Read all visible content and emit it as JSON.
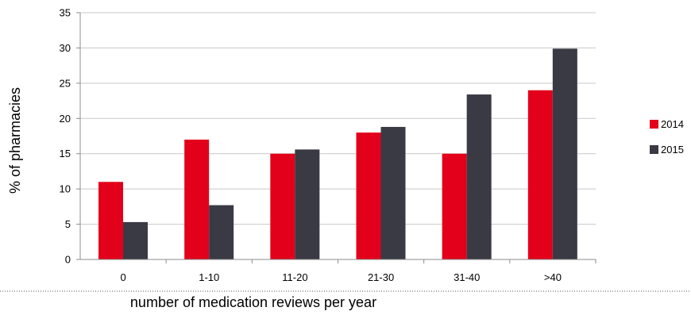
{
  "chart_data": {
    "type": "bar",
    "title": "",
    "xlabel": "number of medication reviews per year",
    "ylabel": "% of pharmacies",
    "categories": [
      "0",
      "1-10",
      "11-20",
      "21-30",
      "31-40",
      ">40"
    ],
    "series": [
      {
        "name": "2014",
        "color": "#e2001a",
        "values": [
          11,
          17,
          15,
          18,
          15,
          24
        ]
      },
      {
        "name": "2015",
        "color": "#3a3a45",
        "values": [
          5.3,
          7.7,
          15.6,
          18.8,
          23.4,
          29.9
        ]
      }
    ],
    "ylim": [
      0,
      35
    ],
    "yticks": [
      0,
      5,
      10,
      15,
      20,
      25,
      30,
      35
    ],
    "grid": true,
    "legend_position": "right"
  }
}
